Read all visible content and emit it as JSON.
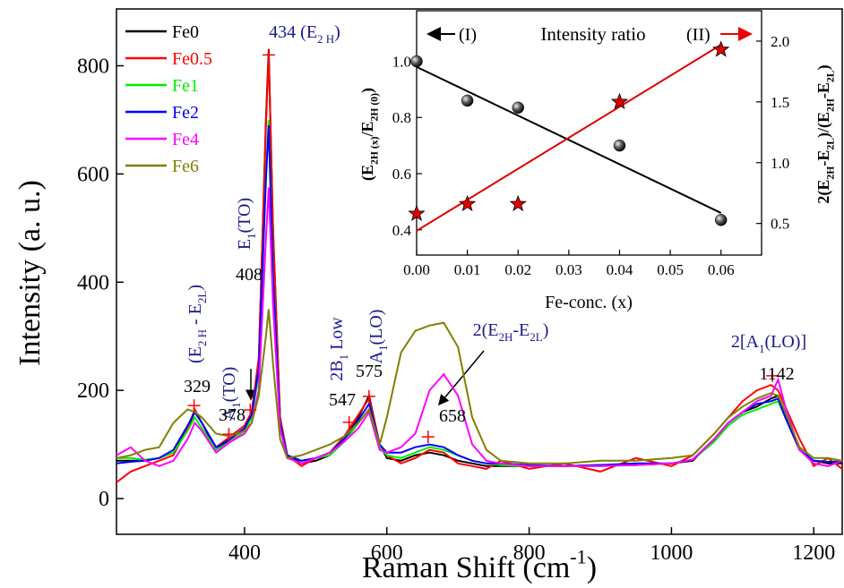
{
  "chart_data": [
    {
      "type": "line",
      "y_label": "Intensity (a. u.)",
      "x_label": [
        "Raman Shift (cm",
        "-1",
        ")"
      ],
      "xlim": [
        220,
        1240
      ],
      "ylim": [
        -66,
        905
      ],
      "xticks": [
        400,
        600,
        800,
        1000,
        1200
      ],
      "yticks": [
        0,
        200,
        400,
        600,
        800
      ],
      "x": [
        220,
        240,
        260,
        280,
        300,
        320,
        330,
        340,
        360,
        380,
        400,
        410,
        420,
        430,
        434,
        440,
        450,
        460,
        480,
        500,
        520,
        540,
        560,
        575,
        590,
        600,
        620,
        640,
        660,
        680,
        700,
        720,
        740,
        760,
        800,
        850,
        900,
        950,
        1000,
        1030,
        1060,
        1080,
        1100,
        1120,
        1140,
        1150,
        1160,
        1180,
        1200,
        1220,
        1240
      ],
      "series": [
        {
          "name": "Fe0",
          "color": "#000000",
          "values": [
            70,
            70,
            70,
            75,
            85,
            130,
            160,
            140,
            90,
            110,
            130,
            160,
            250,
            700,
            830,
            500,
            150,
            80,
            65,
            70,
            80,
            110,
            150,
            190,
            100,
            75,
            70,
            80,
            85,
            80,
            70,
            65,
            60,
            60,
            60,
            60,
            62,
            62,
            65,
            70,
            110,
            140,
            160,
            170,
            185,
            190,
            160,
            90,
            70,
            65,
            65
          ]
        },
        {
          "name": "Fe0.5",
          "color": "#ff0000",
          "values": [
            30,
            50,
            60,
            70,
            80,
            130,
            165,
            140,
            95,
            115,
            135,
            160,
            260,
            690,
            820,
            500,
            150,
            80,
            60,
            75,
            85,
            115,
            155,
            185,
            100,
            80,
            65,
            75,
            90,
            85,
            65,
            60,
            55,
            70,
            55,
            65,
            50,
            75,
            60,
            80,
            120,
            150,
            180,
            200,
            210,
            200,
            170,
            110,
            60,
            75,
            55
          ]
        },
        {
          "name": "Fe1",
          "color": "#00ee00",
          "values": [
            75,
            75,
            72,
            75,
            85,
            125,
            150,
            130,
            90,
            105,
            125,
            150,
            230,
            600,
            700,
            420,
            140,
            80,
            70,
            75,
            80,
            105,
            140,
            165,
            95,
            80,
            75,
            85,
            95,
            90,
            80,
            70,
            65,
            62,
            60,
            60,
            60,
            62,
            65,
            72,
            105,
            135,
            155,
            165,
            175,
            180,
            150,
            90,
            70,
            68,
            70
          ]
        },
        {
          "name": "Fe2",
          "color": "#0000ff",
          "values": [
            65,
            68,
            70,
            75,
            90,
            135,
            160,
            140,
            95,
            110,
            130,
            155,
            240,
            590,
            690,
            410,
            140,
            80,
            70,
            75,
            85,
            110,
            145,
            175,
            100,
            85,
            85,
            95,
            100,
            95,
            80,
            70,
            65,
            65,
            62,
            60,
            62,
            65,
            65,
            72,
            110,
            140,
            160,
            175,
            180,
            185,
            150,
            90,
            70,
            68,
            68
          ]
        },
        {
          "name": "Fe4",
          "color": "#ff00ff",
          "values": [
            80,
            95,
            70,
            60,
            70,
            110,
            140,
            125,
            85,
            105,
            120,
            140,
            200,
            480,
            575,
            360,
            130,
            75,
            65,
            75,
            85,
            105,
            130,
            160,
            90,
            85,
            95,
            120,
            200,
            230,
            190,
            100,
            70,
            65,
            60,
            60,
            60,
            62,
            65,
            72,
            110,
            140,
            160,
            180,
            190,
            220,
            170,
            90,
            65,
            60,
            70
          ]
        },
        {
          "name": "Fe6",
          "color": "#808000",
          "values": [
            75,
            80,
            90,
            95,
            140,
            165,
            160,
            150,
            120,
            115,
            125,
            140,
            190,
            300,
            350,
            250,
            110,
            75,
            80,
            90,
            100,
            115,
            140,
            165,
            100,
            150,
            270,
            310,
            320,
            325,
            280,
            150,
            90,
            70,
            65,
            65,
            70,
            70,
            75,
            80,
            120,
            150,
            170,
            185,
            195,
            190,
            160,
            95,
            75,
            75,
            70
          ]
        }
      ],
      "peak_markers": {
        "color": "#ff0000",
        "x": [
          329,
          378,
          408,
          434,
          547,
          575,
          658,
          1142
        ],
        "values": [
          172,
          119,
          164,
          820,
          141,
          189,
          114,
          227
        ]
      },
      "annotations": [
        {
          "text": [
            "434 (E",
            "2 H",
            ")"
          ],
          "color": "#1a1a8c"
        },
        {
          "text": [
            "(E",
            "2 H",
            " - E",
            "2L",
            ")"
          ],
          "color": "#1a1a8c"
        },
        {
          "text": [
            "329"
          ],
          "color": "#000000"
        },
        {
          "text": [
            "A",
            "1",
            "(TO)"
          ],
          "color": "#1a1a8c"
        },
        {
          "text": [
            "378"
          ],
          "color": "#000000"
        },
        {
          "text": [
            "E",
            "1",
            "(TO)"
          ],
          "color": "#1a1a8c"
        },
        {
          "text": [
            "408"
          ],
          "color": "#000000"
        },
        {
          "text": [
            "2B",
            "1",
            " Low"
          ],
          "color": "#1a1a8c"
        },
        {
          "text": [
            "A",
            "1",
            "(LO)"
          ],
          "color": "#1a1a8c"
        },
        {
          "text": [
            "575"
          ],
          "color": "#000000"
        },
        {
          "text": [
            "547"
          ],
          "color": "#000000"
        },
        {
          "text": [
            "2(E",
            "2H",
            "-E",
            "2L",
            ")"
          ],
          "color": "#1a1a8c"
        },
        {
          "text": [
            "658"
          ],
          "color": "#000000"
        },
        {
          "text": [
            "2[A",
            "1",
            "(LO)]"
          ],
          "color": "#1a1a8c"
        },
        {
          "text": [
            "1142"
          ],
          "color": "#000000"
        }
      ]
    },
    {
      "type": "scatter",
      "title": "Intensity ratio",
      "y_marker": "(I)",
      "y2_marker": "(II)",
      "x_label": "Fe-conc. (x)",
      "y_label": [
        "(E",
        "2H (x)",
        "/E",
        "2H (0)",
        ")"
      ],
      "y2_label": [
        "2(E",
        "2H",
        "-E",
        "2L",
        ")/(E",
        "2H",
        "-E",
        "2L",
        ")"
      ],
      "xlim": [
        0,
        0.068
      ],
      "ylim": [
        0.31,
        1.18
      ],
      "y2lim": [
        0.24,
        2.25
      ],
      "xticks": [
        {
          "value": 0,
          "label": "0.00"
        },
        {
          "value": 0.01,
          "label": "0.01"
        },
        {
          "value": 0.02,
          "label": "0.02"
        },
        {
          "value": 0.03,
          "label": "0.03"
        },
        {
          "value": 0.04,
          "label": "0.04"
        },
        {
          "value": 0.05,
          "label": "0.05"
        },
        {
          "value": 0.06,
          "label": "0.06"
        }
      ],
      "yticks": [
        0.4,
        0.6,
        0.8,
        {
          "value": 1,
          "label": "1.0"
        }
      ],
      "y2ticks": [
        0.5,
        {
          "value": 1,
          "label": "1.0"
        },
        1.5,
        {
          "value": 2,
          "label": "2.0"
        }
      ],
      "x": [
        0,
        0.01,
        0.02,
        0.04,
        0.06
      ],
      "series": [
        {
          "color": "#000000",
          "marker": "sphere",
          "values": [
            1.0,
            0.86,
            0.835,
            0.7,
            0.435
          ]
        },
        {
          "color": "#e00000",
          "marker": "star",
          "axis": "y2",
          "values": [
            0.58,
            0.66,
            0.66,
            1.5,
            1.93
          ]
        }
      ],
      "fits": [
        {
          "color": "#000000",
          "x": [
            0,
            0.06
          ],
          "values": [
            0.98,
            0.46
          ]
        },
        {
          "color": "#e00000",
          "axis": "y2",
          "x": [
            0,
            0.06
          ],
          "values": [
            0.44,
            1.97
          ]
        }
      ]
    }
  ]
}
